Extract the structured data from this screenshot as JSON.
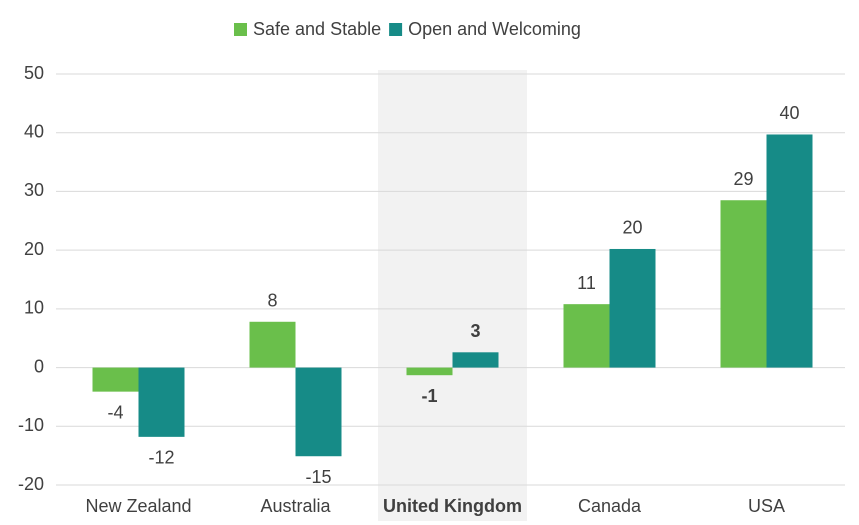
{
  "chart_data": {
    "type": "bar",
    "categories": [
      "New Zealand",
      "Australia",
      "United Kingdom",
      "Canada",
      "USA"
    ],
    "series": [
      {
        "name": "Safe and Stable",
        "color": "#6abf4b",
        "values": [
          -4.1,
          7.8,
          -1.3,
          10.8,
          28.5
        ],
        "value_labels": [
          "-4",
          "8",
          "-1",
          "11",
          "29"
        ]
      },
      {
        "name": "Open and Welcoming",
        "color": "#168b87",
        "values": [
          -11.8,
          -15.1,
          2.6,
          20.2,
          39.7
        ],
        "value_labels": [
          "-12",
          "-15",
          "3",
          "20",
          "40"
        ]
      }
    ],
    "ylim": [
      -20,
      50
    ],
    "yticks": [
      -20,
      -10,
      0,
      10,
      20,
      30,
      40,
      50
    ],
    "grid": true,
    "legend": "top",
    "highlight_index": 2
  }
}
